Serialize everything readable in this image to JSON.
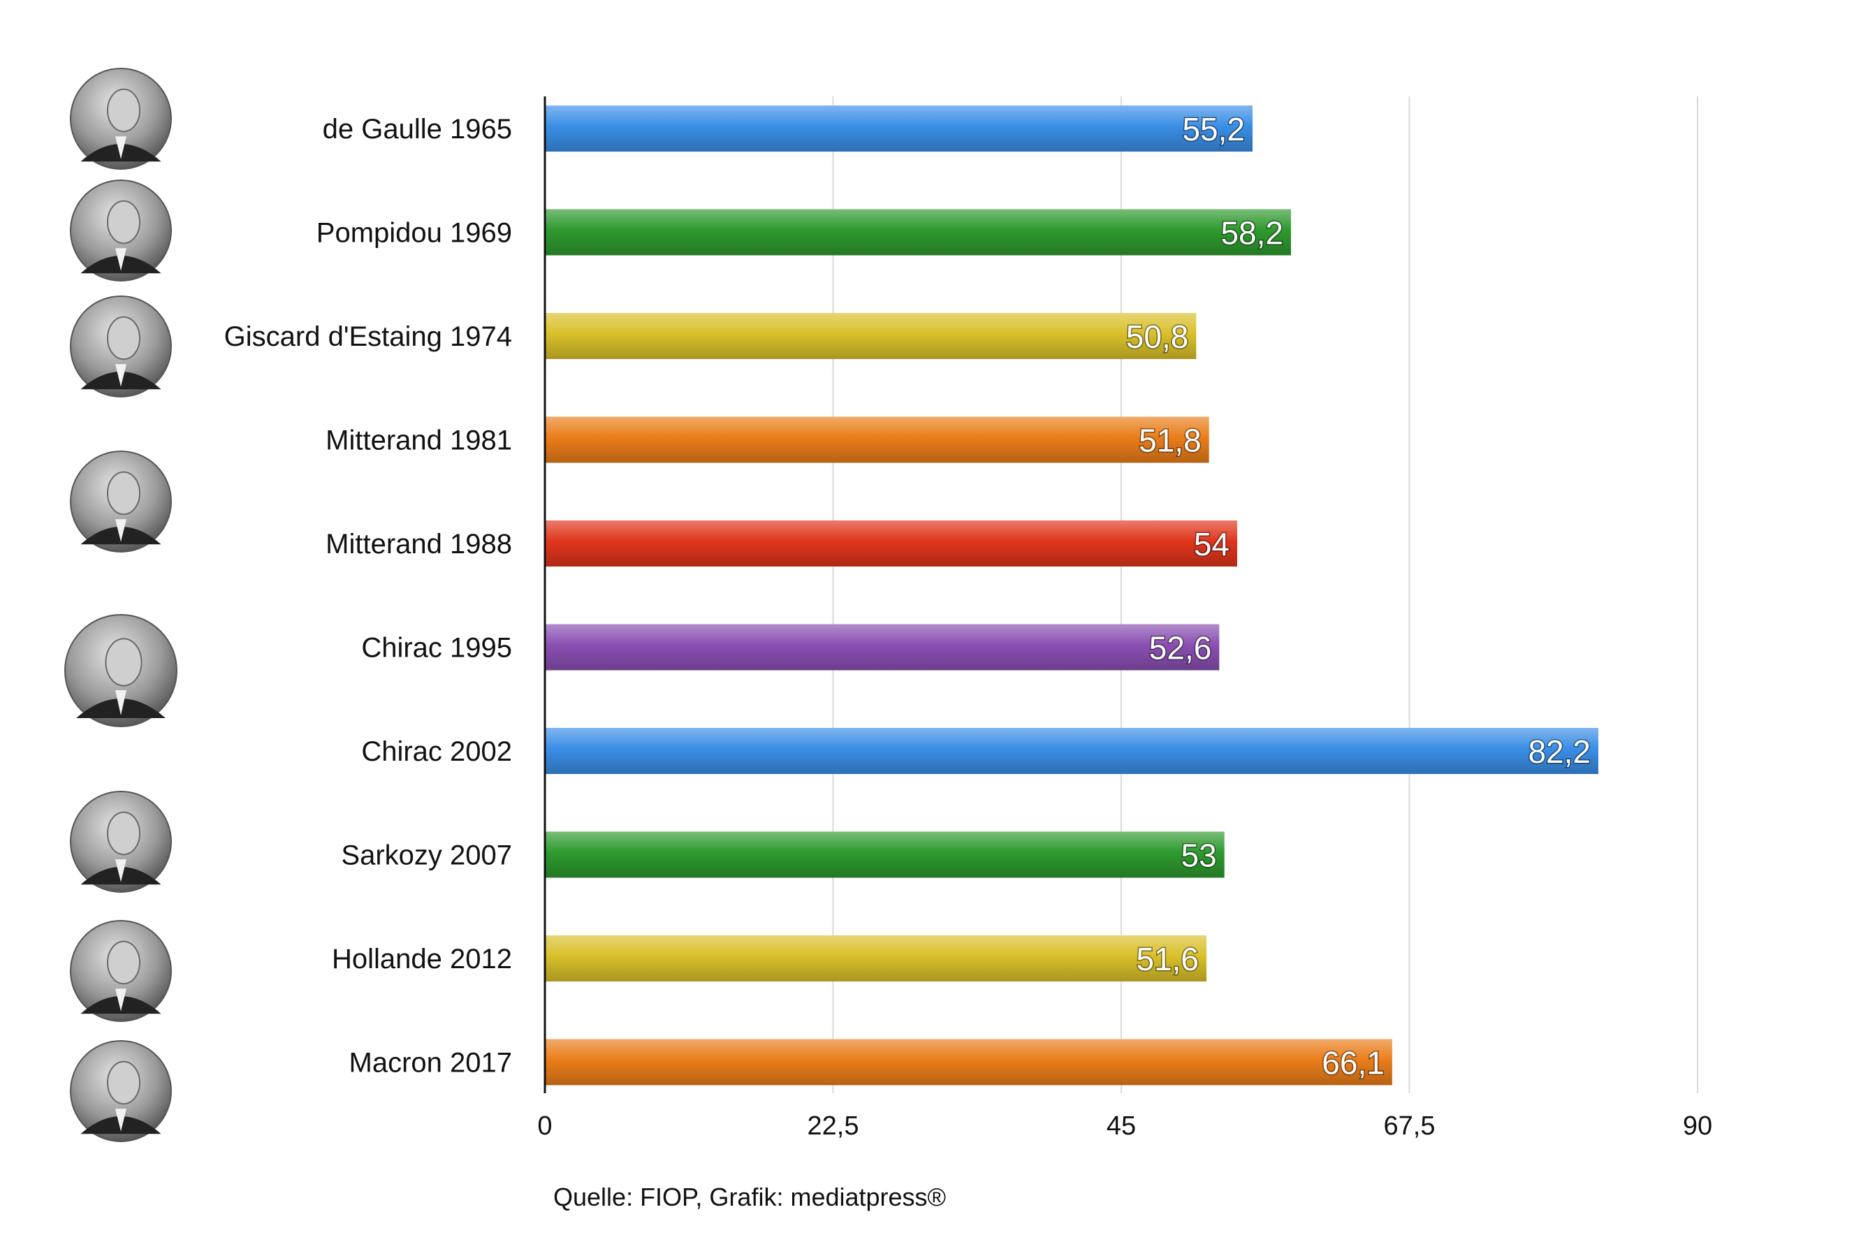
{
  "chart_data": {
    "type": "bar",
    "orientation": "horizontal",
    "categories": [
      "de Gaulle 1965",
      "Pompidou 1969",
      "Giscard d'Estaing 1974",
      "Mitterand 1981",
      "Mitterand 1988",
      "Chirac 1995",
      "Chirac 2002",
      "Sarkozy 2007",
      "Hollande 2012",
      "Macron 2017"
    ],
    "values": [
      55.2,
      58.2,
      50.8,
      51.8,
      54,
      52.6,
      82.2,
      53,
      51.6,
      66.1
    ],
    "value_labels": [
      "55,2",
      "58,2",
      "50,8",
      "51,8",
      "54",
      "52,6",
      "82,2",
      "53",
      "51,6",
      "66,1"
    ],
    "bar_colors": [
      "#3a8ee6",
      "#2e9a2e",
      "#d9c02a",
      "#ea7d1a",
      "#e0351c",
      "#8a4fb2",
      "#3a8ee6",
      "#2e9a2e",
      "#d9c02a",
      "#ea7d1a"
    ],
    "xlim": [
      0,
      90
    ],
    "x_ticks": [
      0,
      22.5,
      45,
      67.5,
      90
    ],
    "x_tick_labels": [
      "0",
      "22,5",
      "45",
      "67,5",
      "90"
    ],
    "grid": true,
    "portraits": [
      "de Gaulle 1965",
      "Pompidou 1969",
      "Giscard d'Estaing 1974",
      "Mitterand 1988",
      "Chirac 1995",
      "Sarkozy 2007",
      "Hollande 2012",
      "Macron 2017"
    ]
  },
  "source": "Quelle: FIOP, Grafik: mediatpress®"
}
